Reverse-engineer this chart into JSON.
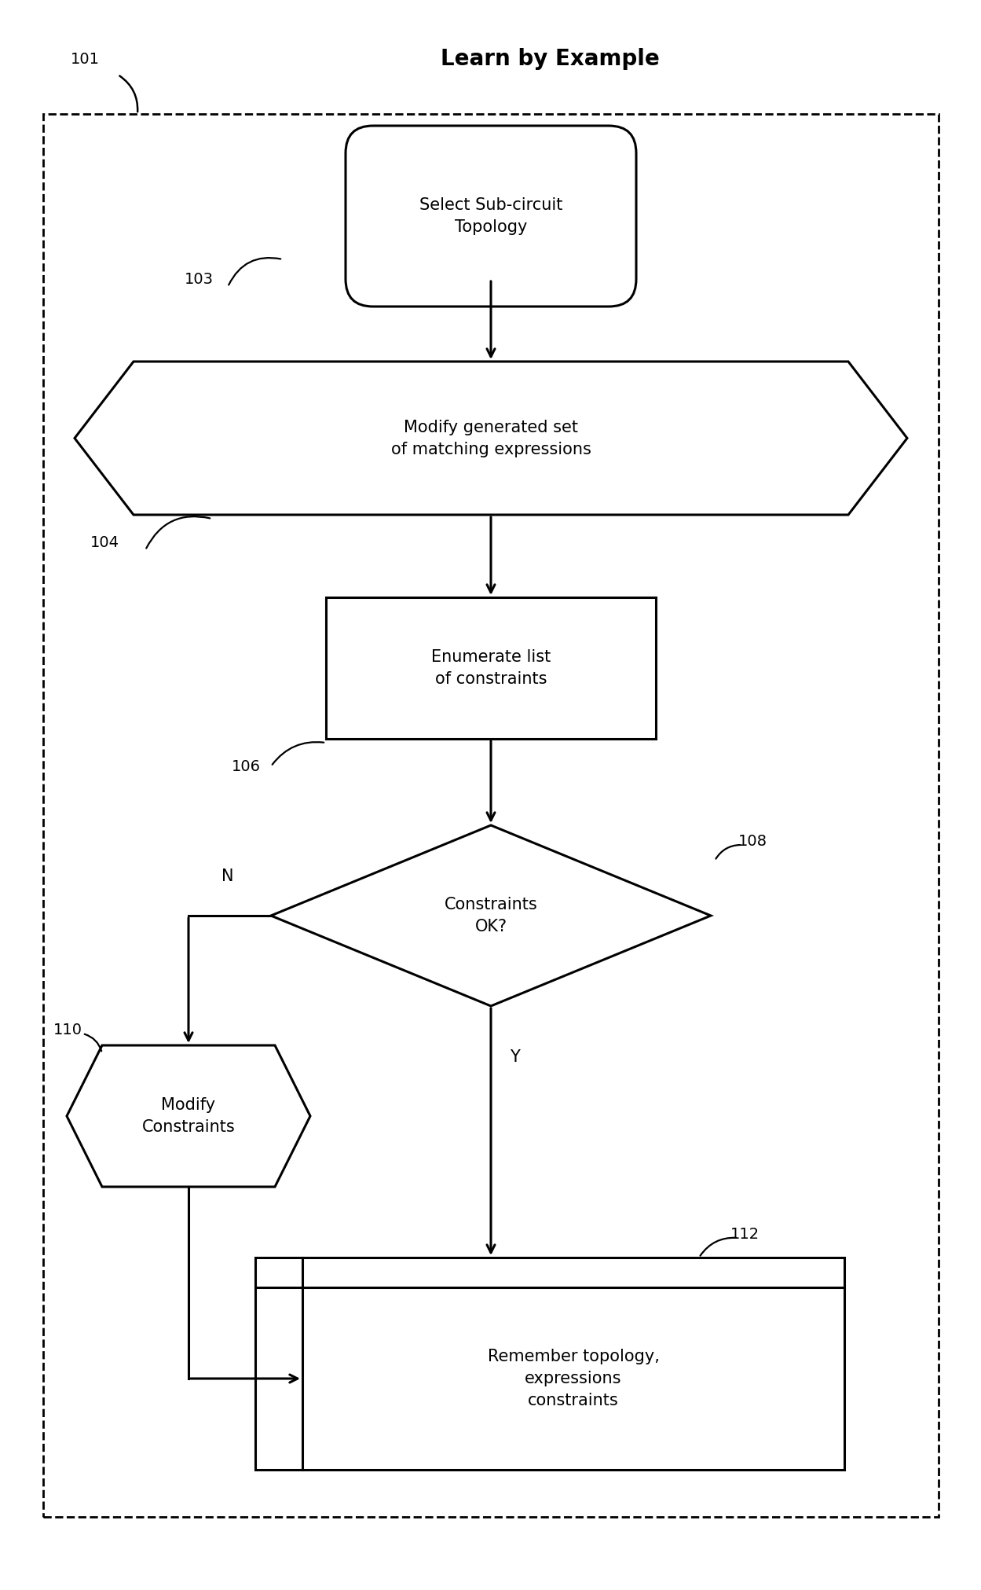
{
  "title": "Learn by Example",
  "title_fontsize": 20,
  "title_fontweight": "bold",
  "bg_color": "#ffffff",
  "line_color": "#000000",
  "line_width": 2.2,
  "label_101": "101",
  "label_103": "103",
  "label_104": "104",
  "label_106": "106",
  "label_108": "108",
  "label_110": "110",
  "label_112": "112",
  "node_103_text": "Select Sub-circuit\nTopology",
  "node_104_text": "Modify generated set\nof matching expressions",
  "node_106_text": "Enumerate list\nof constraints",
  "node_108_text": "Constraints\nOK?",
  "node_110_text": "Modify\nConstraints",
  "node_112_text": "Remember topology,\nexpressions\nconstraints",
  "fontsize": 15,
  "label_fontsize": 14,
  "figw": 12.49,
  "figh": 20.23,
  "dpi": 100
}
